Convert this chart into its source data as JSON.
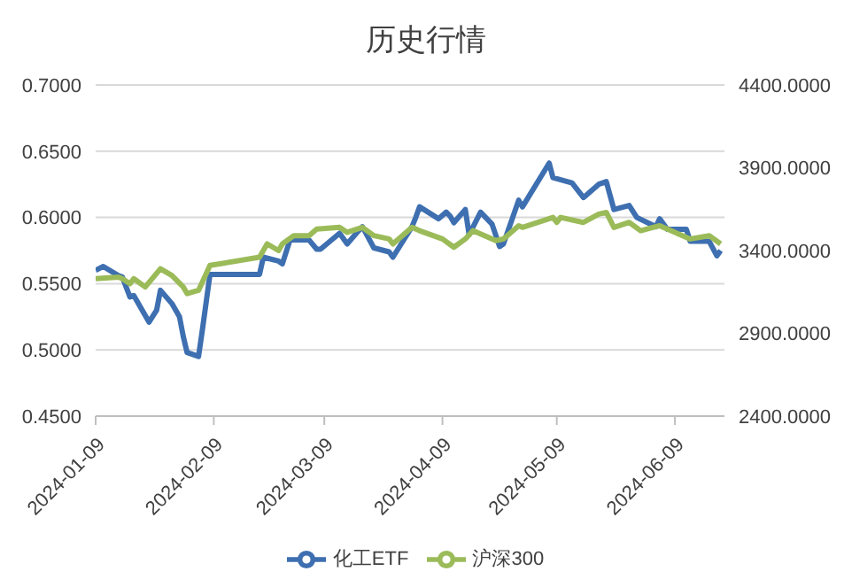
{
  "chart_data": {
    "type": "line",
    "title": "历史行情",
    "xlim": [
      "2024-01-09",
      "2024-06-22"
    ],
    "xticks": [
      "2024-01-09",
      "2024-02-09",
      "2024-03-09",
      "2024-04-09",
      "2024-05-09",
      "2024-06-09"
    ],
    "ylim": [
      0.45,
      0.7
    ],
    "yticks": [
      {
        "value": 0.45,
        "label": "0.4500"
      },
      {
        "value": 0.5,
        "label": "0.5000"
      },
      {
        "value": 0.55,
        "label": "0.5500"
      },
      {
        "value": 0.6,
        "label": "0.6000"
      },
      {
        "value": 0.65,
        "label": "0.6500"
      },
      {
        "value": 0.7,
        "label": "0.7000"
      }
    ],
    "y2lim": [
      2400,
      4400
    ],
    "y2ticks": [
      {
        "value": 2400,
        "label": "2400.0000"
      },
      {
        "value": 2900,
        "label": "2900.0000"
      },
      {
        "value": 3400,
        "label": "3400.0000"
      },
      {
        "value": 3900,
        "label": "3900.0000"
      },
      {
        "value": 4400,
        "label": "4400.0000"
      }
    ],
    "grid": "y",
    "legend": "bottom",
    "marker": "none",
    "line_style": "solid",
    "series": [
      {
        "name": "化工ETF",
        "color": "#3e6fb0",
        "x": [
          "2024-01-09",
          "2024-01-11",
          "2024-01-15",
          "2024-01-16",
          "2024-01-18",
          "2024-01-19",
          "2024-01-23",
          "2024-01-25",
          "2024-01-26",
          "2024-01-29",
          "2024-01-31",
          "2024-02-01",
          "2024-02-02",
          "2024-02-05",
          "2024-02-06",
          "2024-02-08",
          "2024-02-21",
          "2024-02-22",
          "2024-02-26",
          "2024-02-27",
          "2024-02-29",
          "2024-03-05",
          "2024-03-07",
          "2024-03-08",
          "2024-03-13",
          "2024-03-15",
          "2024-03-18",
          "2024-03-19",
          "2024-03-22",
          "2024-03-26",
          "2024-03-27",
          "2024-04-01",
          "2024-04-02",
          "2024-04-03",
          "2024-04-08",
          "2024-04-10",
          "2024-04-11",
          "2024-04-12",
          "2024-04-15",
          "2024-04-16",
          "2024-04-19",
          "2024-04-22",
          "2024-04-24",
          "2024-04-25",
          "2024-04-29",
          "2024-04-30",
          "2024-05-07",
          "2024-05-08",
          "2024-05-13",
          "2024-05-16",
          "2024-05-20",
          "2024-05-22",
          "2024-05-24",
          "2024-05-28",
          "2024-05-30",
          "2024-06-04",
          "2024-06-05",
          "2024-06-07",
          "2024-06-12",
          "2024-06-13",
          "2024-06-18",
          "2024-06-20",
          "2024-06-21"
        ],
        "values": [
          0.56,
          0.563,
          0.556,
          0.555,
          0.54,
          0.541,
          0.521,
          0.53,
          0.545,
          0.535,
          0.525,
          0.51,
          0.498,
          0.495,
          0.515,
          0.557,
          0.557,
          0.57,
          0.567,
          0.565,
          0.583,
          0.583,
          0.576,
          0.576,
          0.588,
          0.58,
          0.59,
          0.593,
          0.577,
          0.574,
          0.57,
          0.593,
          0.6,
          0.608,
          0.599,
          0.604,
          0.601,
          0.596,
          0.606,
          0.587,
          0.604,
          0.595,
          0.578,
          0.58,
          0.613,
          0.608,
          0.641,
          0.63,
          0.626,
          0.615,
          0.625,
          0.627,
          0.606,
          0.609,
          0.6,
          0.593,
          0.599,
          0.591,
          0.591,
          0.582,
          0.582,
          0.571,
          0.575
        ]
      },
      {
        "name": "沪深300",
        "color": "#9bbb59",
        "axis": "y2",
        "x": [
          "2024-01-09",
          "2024-01-15",
          "2024-01-16",
          "2024-01-18",
          "2024-01-19",
          "2024-01-22",
          "2024-01-26",
          "2024-01-29",
          "2024-02-01",
          "2024-02-02",
          "2024-02-05",
          "2024-02-08",
          "2024-02-21",
          "2024-02-23",
          "2024-02-26",
          "2024-02-27",
          "2024-03-01",
          "2024-03-05",
          "2024-03-07",
          "2024-03-13",
          "2024-03-15",
          "2024-03-19",
          "2024-03-22",
          "2024-03-26",
          "2024-03-27",
          "2024-04-01",
          "2024-04-03",
          "2024-04-09",
          "2024-04-12",
          "2024-04-15",
          "2024-04-17",
          "2024-04-23",
          "2024-04-25",
          "2024-04-29",
          "2024-04-30",
          "2024-05-08",
          "2024-05-09",
          "2024-05-10",
          "2024-05-16",
          "2024-05-20",
          "2024-05-22",
          "2024-05-24",
          "2024-05-28",
          "2024-05-31",
          "2024-06-05",
          "2024-06-13",
          "2024-06-18",
          "2024-06-21"
        ],
        "values": [
          3230,
          3240,
          3230,
          3200,
          3230,
          3180,
          3290,
          3250,
          3180,
          3140,
          3160,
          3310,
          3360,
          3440,
          3400,
          3440,
          3490,
          3490,
          3530,
          3540,
          3510,
          3540,
          3490,
          3470,
          3440,
          3540,
          3520,
          3470,
          3420,
          3470,
          3520,
          3460,
          3470,
          3550,
          3540,
          3600,
          3570,
          3600,
          3570,
          3620,
          3630,
          3540,
          3570,
          3520,
          3550,
          3470,
          3490,
          3440
        ]
      }
    ]
  }
}
